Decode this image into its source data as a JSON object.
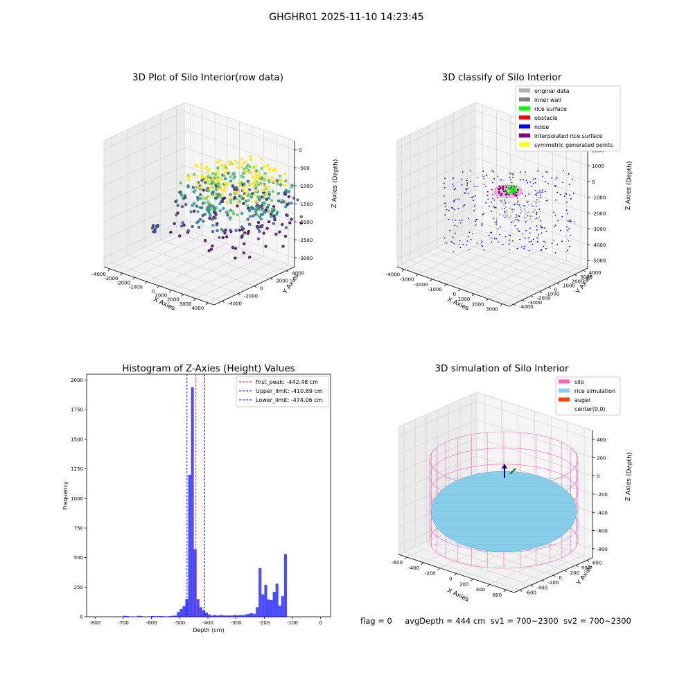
{
  "figure": {
    "suptitle": "GHGHR01 2025-11-10 14:23:45",
    "footer": {
      "flag": "flag = 0",
      "avg": "avgDepth = 444 cm",
      "sv1": "sv1 = 700~2300",
      "sv2": "sv2 = 700~2300"
    }
  },
  "chart_data": [
    {
      "type": "scatter",
      "title": "3D Plot of Silo Interior(row data)",
      "xlabel": "X Axies",
      "ylabel": "Y Axies",
      "zlabel": "Z Axies (Depth)",
      "xticks": [
        -4000,
        -3000,
        -2000,
        -1000,
        0,
        1000,
        2000,
        3000,
        4000
      ],
      "yticks": [
        -4000,
        -2000,
        0,
        2000,
        4000
      ],
      "zticks": [
        -3000,
        -2500,
        -2000,
        -1500,
        -1000,
        -500,
        0
      ],
      "colormap": [
        "#440154",
        "#3b528b",
        "#21918c",
        "#5ec962",
        "#fde725"
      ]
    },
    {
      "type": "scatter",
      "title": "3D classify of Silo Interior",
      "xlabel": "X Axies",
      "ylabel": "Y Axies",
      "zlabel": "Z Axies (Depth)",
      "xticks": [
        -4000,
        -3000,
        -2000,
        -1000,
        0,
        1000,
        2000,
        3000
      ],
      "yticks": [
        -4000,
        -3000,
        -2000,
        -1000,
        0,
        1000,
        2000,
        3000,
        4000
      ],
      "zticks": [
        -5000,
        -4000,
        -3000,
        -2000,
        -1000,
        0,
        1000,
        2000
      ],
      "legend": [
        {
          "label": "original data",
          "color": "#b0b0b0"
        },
        {
          "label": "inner wall",
          "color": "#808080"
        },
        {
          "label": "rice surface",
          "color": "#00ff00"
        },
        {
          "label": "obstacle",
          "color": "#ff0000"
        },
        {
          "label": "noise",
          "color": "#0000ff"
        },
        {
          "label": "interpolated rice surface",
          "color": "#800080"
        },
        {
          "label": "symmetric generated points",
          "color": "#ffff00"
        }
      ]
    },
    {
      "type": "bar",
      "title": "Histogram of Z-Axies (Height) Values",
      "xlabel": "Depth (cm)",
      "ylabel": "Frequency",
      "xlim": [
        -830,
        35
      ],
      "ylim": [
        0,
        2050
      ],
      "xticks": [
        -800,
        -700,
        -600,
        -500,
        -400,
        -300,
        -200,
        -100,
        0
      ],
      "yticks": [
        0,
        250,
        500,
        750,
        1000,
        1250,
        1500,
        1750,
        2000
      ],
      "bar_color": "#0000ff",
      "bins_left": [
        -700,
        -690,
        -650,
        -640,
        -610,
        -600,
        -590,
        -580,
        -570,
        -560,
        -540,
        -530,
        -520,
        -510,
        -500,
        -490,
        -480,
        -470,
        -460,
        -450,
        -440,
        -430,
        -420,
        -410,
        -400,
        -390,
        -380,
        -370,
        -360,
        -350,
        -340,
        -330,
        -320,
        -310,
        -300,
        -290,
        -280,
        -270,
        -260,
        -250,
        -240,
        -230,
        -220,
        -210,
        -200,
        -190,
        -180,
        -170,
        -160,
        -150,
        -140,
        -130,
        -120,
        -110,
        -100,
        -90,
        -80,
        -70,
        -60,
        -50,
        -40,
        -30,
        -20,
        -10
      ],
      "bin_width": 10,
      "values": [
        8,
        5,
        8,
        5,
        4,
        6,
        4,
        6,
        5,
        4,
        5,
        8,
        10,
        40,
        65,
        90,
        150,
        1200,
        1940,
        570,
        150,
        80,
        55,
        35,
        20,
        10,
        15,
        10,
        15,
        12,
        10,
        12,
        10,
        15,
        12,
        15,
        14,
        20,
        25,
        30,
        25,
        80,
        410,
        190,
        270,
        145,
        140,
        210,
        280,
        95,
        175,
        530,
        0,
        0,
        0,
        0,
        0,
        0,
        0,
        0,
        0,
        0,
        0,
        0
      ],
      "vlines": [
        {
          "label": "first_peak: -442.48 cm",
          "x": -442.48,
          "color": "#ff0000"
        },
        {
          "label": "Upper_limit: -410.89 cm",
          "x": -410.89,
          "color": "#0000ff"
        },
        {
          "label": "Lower_limit: -474.06 cm",
          "x": -474.06,
          "color": "#0000ff"
        }
      ]
    },
    {
      "type": "scatter",
      "title": "3D simulation of Silo Interior",
      "xlabel": "X Axies",
      "ylabel": "Y Axies",
      "zlabel": "Z Axies (Depth)",
      "xticks": [
        -600,
        -400,
        -200,
        0,
        200,
        400,
        600
      ],
      "yticks": [
        -600,
        -400,
        -200,
        0,
        200,
        400,
        600
      ],
      "zticks": [
        -800,
        -600,
        -400,
        -200,
        0,
        200,
        400
      ],
      "legend": [
        {
          "label": "silo",
          "color": "#ff69b4"
        },
        {
          "label": "rice simulation",
          "color": "#87ceeb"
        },
        {
          "label": "auger",
          "color": "#ff4500"
        },
        {
          "label": "center(0,0)",
          "color": ""
        }
      ]
    }
  ]
}
